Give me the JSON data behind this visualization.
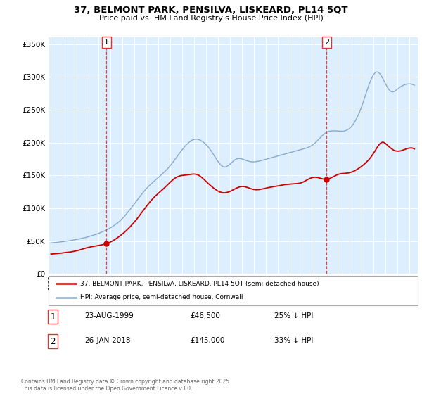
{
  "title_line1": "37, BELMONT PARK, PENSILVA, LISKEARD, PL14 5QT",
  "title_line2": "Price paid vs. HM Land Registry's House Price Index (HPI)",
  "legend_red": "37, BELMONT PARK, PENSILVA, LISKEARD, PL14 5QT (semi-detached house)",
  "legend_blue": "HPI: Average price, semi-detached house, Cornwall",
  "annotation1_label": "1",
  "annotation1_date": "23-AUG-1999",
  "annotation1_price": "£46,500",
  "annotation1_hpi": "25% ↓ HPI",
  "annotation2_label": "2",
  "annotation2_date": "26-JAN-2018",
  "annotation2_price": "£145,000",
  "annotation2_hpi": "33% ↓ HPI",
  "footnote": "Contains HM Land Registry data © Crown copyright and database right 2025.\nThis data is licensed under the Open Government Licence v3.0.",
  "plot_bg_color": "#ddeeff",
  "red_color": "#cc0000",
  "blue_color": "#88aacc",
  "dashed_color": "#dd3333",
  "marker1_date": 1999.647,
  "marker1_value": 46500,
  "marker2_date": 2018.07,
  "marker2_value": 145000,
  "ylim": [
    0,
    360000
  ],
  "xlim_start": 1994.8,
  "xlim_end": 2025.7
}
